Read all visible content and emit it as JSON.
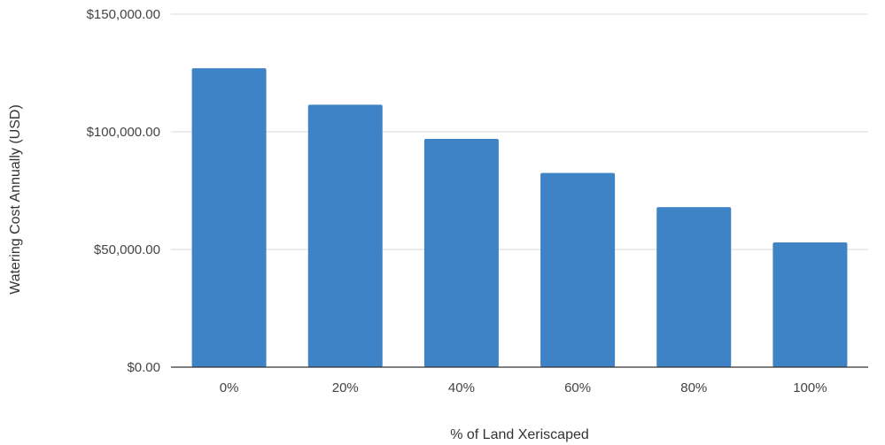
{
  "chart_data": {
    "type": "bar",
    "title": "",
    "xlabel": "% of Land Xeriscaped",
    "ylabel": "Watering Cost Annually (USD)",
    "categories": [
      "0%",
      "20%",
      "40%",
      "60%",
      "80%",
      "100%"
    ],
    "values": [
      127000,
      111500,
      97000,
      82500,
      68000,
      53000
    ],
    "ylim": [
      0,
      150000
    ],
    "yticks": [
      0,
      50000,
      100000,
      150000
    ],
    "ytick_labels": [
      "$0.00",
      "$50,000.00",
      "$100,000.00",
      "$150,000.00"
    ],
    "grid": true,
    "legend": "none",
    "bar_color": "#3e83c5"
  }
}
